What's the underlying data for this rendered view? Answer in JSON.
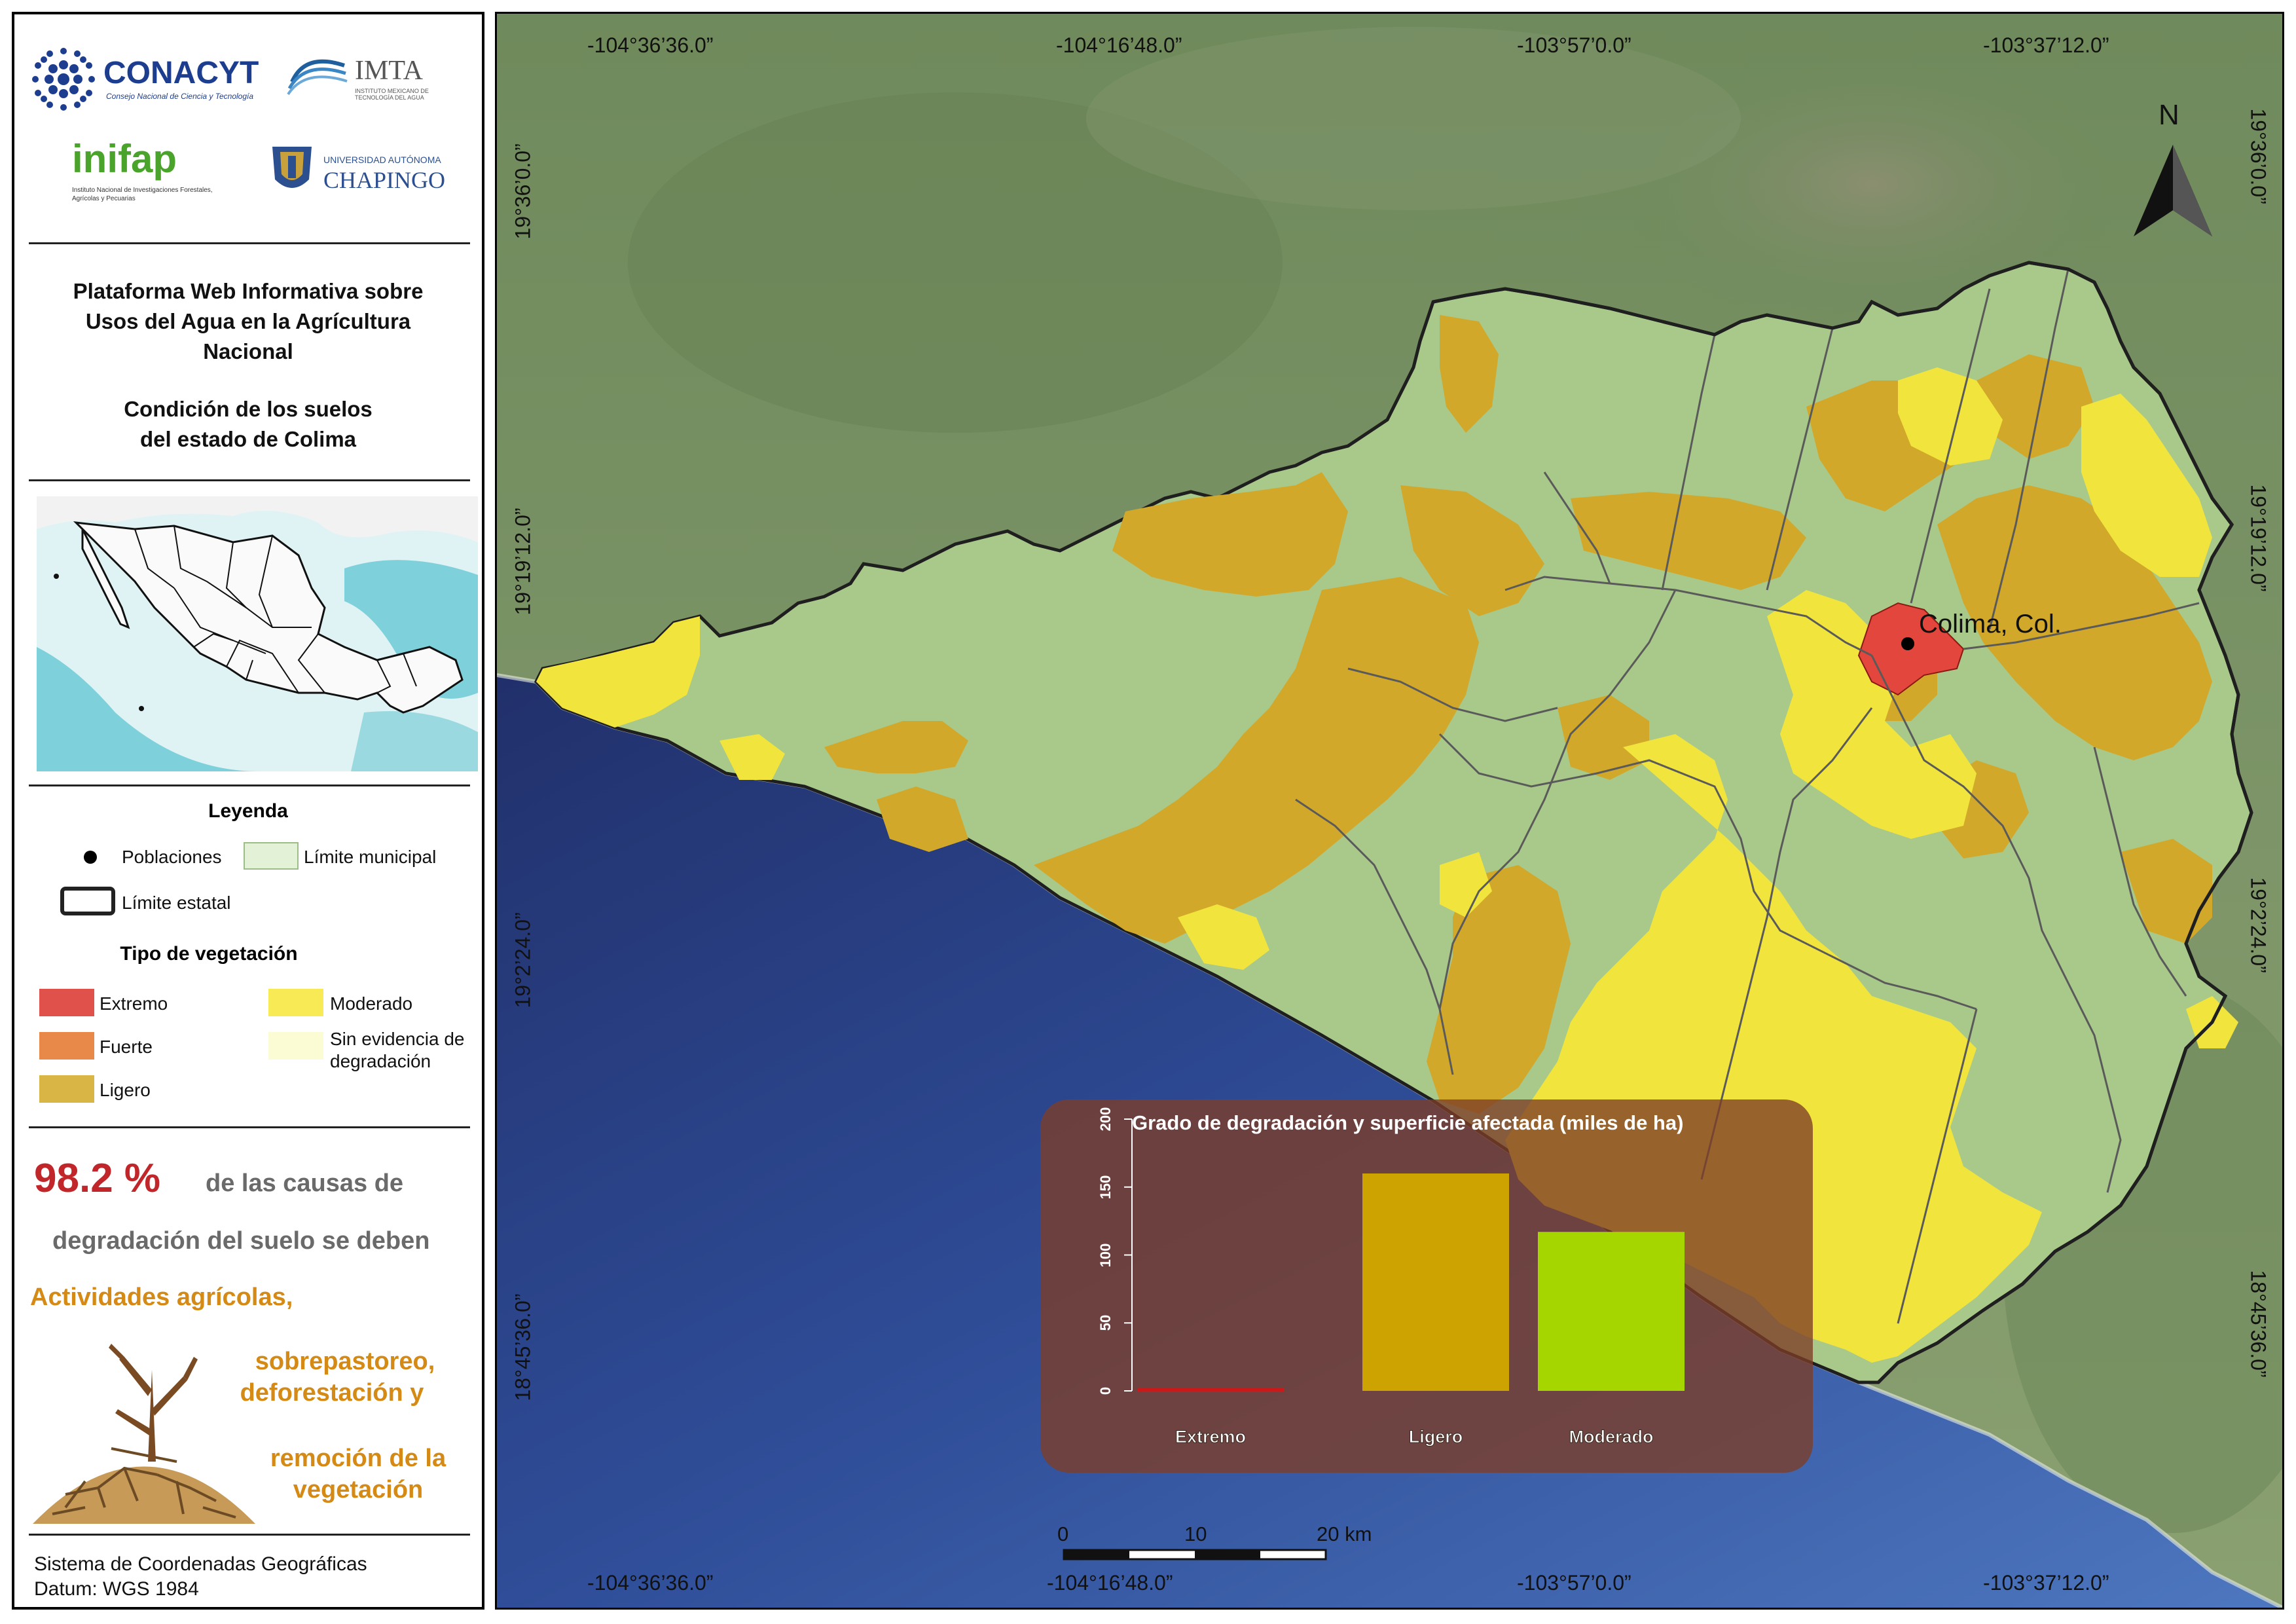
{
  "logos": {
    "conacyt": {
      "name": "CONACYT",
      "subtitle": "Consejo Nacional de Ciencia y Tecnología"
    },
    "imta": {
      "name": "IMTA",
      "subtitle": "INSTITUTO MEXICANO DE TECNOLOGÍA DEL AGUA"
    },
    "inifap": {
      "name": "inifap",
      "subtitle": "Instituto Nacional de Investigaciones Forestales, Agrícolas y Pecuarias"
    },
    "chapingo": {
      "top": "UNIVERSIDAD AUTÓNOMA",
      "name": "CHAPINGO"
    }
  },
  "title": {
    "line1": "Plataforma Web Informativa sobre",
    "line2": "Usos del Agua en la Agrícultura",
    "line3": "Nacional",
    "sub1": "Condición de los suelos",
    "sub2": "del estado de Colima"
  },
  "legend": {
    "heading": "Leyenda",
    "poblaciones": "Poblaciones",
    "limite_municipal": "Límite municipal",
    "limite_estatal": "Límite estatal",
    "veg_heading": "Tipo de vegetación",
    "classes": [
      {
        "label": "Extremo",
        "color": "#e0514b"
      },
      {
        "label": "Fuerte",
        "color": "#e8894a"
      },
      {
        "label": "Ligero",
        "color": "#d8b545"
      },
      {
        "label": "Moderado",
        "color": "#f7ea55"
      },
      {
        "label": "Sin evidencia de",
        "label2": "degradación",
        "color": "#fbfbd4"
      }
    ]
  },
  "stat": {
    "percent": "98.2 %",
    "line1": "de las causas  de",
    "line2": "degradación del suelo se deben",
    "causes1": "Actividades agrícolas,",
    "causes2": "sobrepastoreo,",
    "causes3": "deforestación y",
    "causes4": "remoción de la",
    "causes5": "vegetación"
  },
  "footer": {
    "line1": "Sistema de Coordenadas Geográficas",
    "line2": "Datum: WGS 1984"
  },
  "map": {
    "coords_top": [
      "-104°36’36.0”",
      "-104°16’48.0”",
      "-103°57’0.0”",
      "-103°37’12.0”"
    ],
    "coords_bottom": [
      "-104°36’36.0”",
      "-104°16’48.0”",
      "-103°57’0.0”",
      "-103°37’12.0”"
    ],
    "coords_left": [
      "19°36’0.0”",
      "19°19’12.0”",
      "19°2’24.0”",
      "18°45’36.0”"
    ],
    "coords_right": [
      "19°36’0.0”",
      "19°19’12.0”",
      "19°2’24.0”",
      "18°45’36.0”"
    ],
    "north_label": "N",
    "city_label": "Colima, Col.",
    "scale": {
      "labels": [
        "0",
        "10",
        "20 km"
      ]
    },
    "colors": {
      "ligero": "#d2a82a",
      "moderado": "#f1e43c",
      "sin_evidencia": "#a9c98a",
      "extremo": "#e2463c"
    }
  },
  "chart_data": {
    "type": "bar",
    "title": "Grado de degradación y superficie afectada (miles de ha)",
    "categories": [
      "Extremo",
      "Ligero",
      "Moderado"
    ],
    "values": [
      2,
      160,
      117
    ],
    "colors": [
      "#cc1818",
      "#cca300",
      "#a5d600"
    ],
    "ylim": [
      0,
      200
    ],
    "yticks": [
      0,
      50,
      100,
      150,
      200
    ]
  }
}
